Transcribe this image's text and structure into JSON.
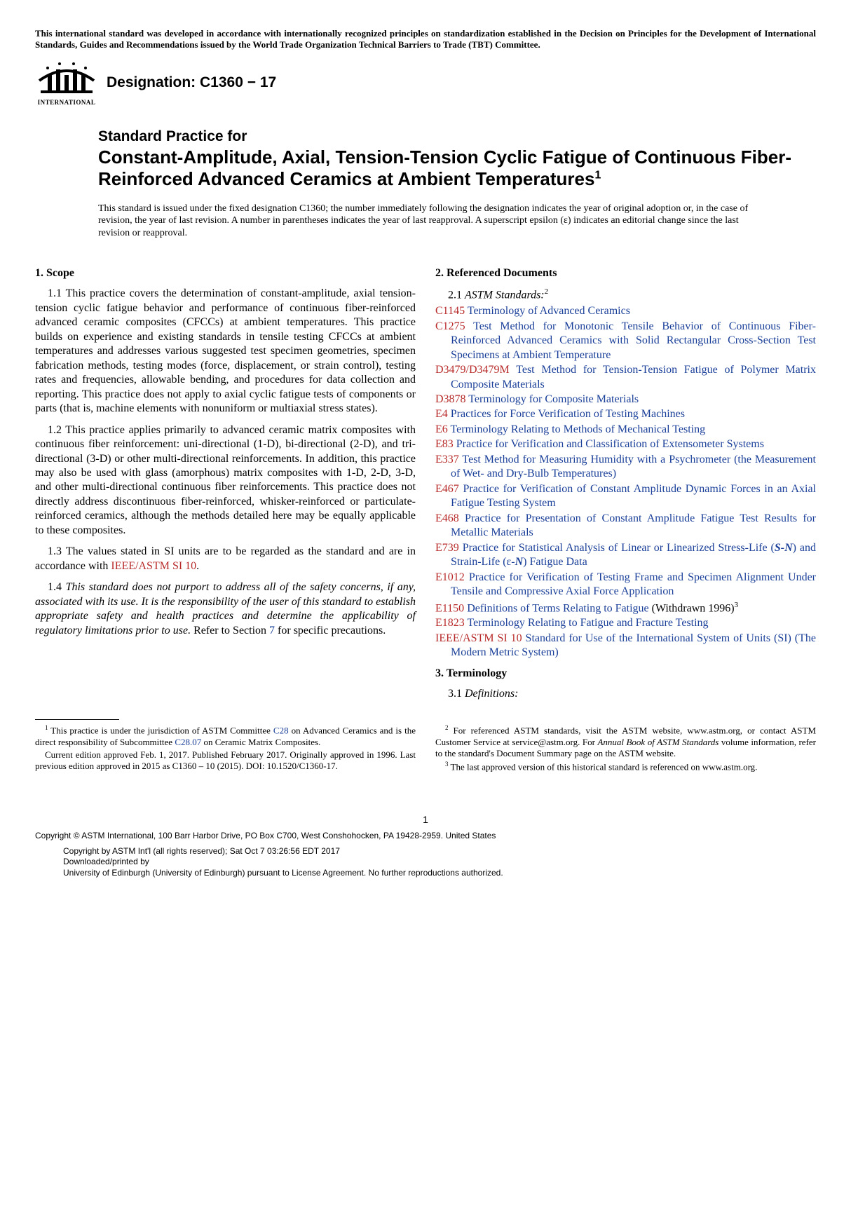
{
  "top_notice": "This international standard was developed in accordance with internationally recognized principles on standardization established in the Decision on Principles for the Development of International Standards, Guides and Recommendations issued by the World Trade Organization Technical Barriers to Trade (TBT) Committee.",
  "logo_international": "INTERNATIONAL",
  "designation": "Designation: C1360 − 17",
  "title_pre": "Standard Practice for",
  "title_main": "Constant-Amplitude, Axial, Tension-Tension Cyclic Fatigue of Continuous Fiber-Reinforced Advanced Ceramics at Ambient Temperatures",
  "title_sup": "1",
  "issuance_note": "This standard is issued under the fixed designation C1360; the number immediately following the designation indicates the year of original adoption or, in the case of revision, the year of last revision. A number in parentheses indicates the year of last reapproval. A superscript epsilon (ε) indicates an editorial change since the last revision or reapproval.",
  "scope": {
    "heading": "1.  Scope",
    "p1": "1.1 This practice covers the determination of constant-amplitude, axial tension-tension cyclic fatigue behavior and performance of continuous fiber-reinforced advanced ceramic composites (CFCCs) at ambient temperatures. This practice builds on experience and existing standards in tensile testing CFCCs at ambient temperatures and addresses various suggested test specimen geometries, specimen fabrication methods, testing modes (force, displacement, or strain control), testing rates and frequencies, allowable bending, and procedures for data collection and reporting. This practice does not apply to axial cyclic fatigue tests of components or parts (that is, machine elements with nonuniform or multiaxial stress states).",
    "p2": "1.2 This practice applies primarily to advanced ceramic matrix composites with continuous fiber reinforcement: uni-directional (1-D), bi-directional (2-D), and tri-directional (3-D) or other multi-directional reinforcements. In addition, this practice may also be used with glass (amorphous) matrix composites with 1-D, 2-D, 3-D, and other multi-directional continuous fiber reinforcements. This practice does not directly address discontinuous fiber-reinforced, whisker-reinforced or particulate-reinforced ceramics, although the methods detailed here may be equally applicable to these composites.",
    "p3_a": "1.3 The values stated in SI units are to be regarded as the standard and are in accordance with ",
    "p3_link": "IEEE/ASTM SI 10",
    "p3_b": ".",
    "p4_a": "1.4 ",
    "p4_i": "This standard does not purport to address all of the safety concerns, if any, associated with its use. It is the responsibility of the user of this standard to establish appropriate safety and health practices and determine the applicability of regulatory limitations prior to use.",
    "p4_b": " Refer to Section ",
    "p4_link": "7",
    "p4_c": " for specific precautions."
  },
  "refs": {
    "heading": "2.  Referenced Documents",
    "sub_a": "2.1 ",
    "sub_i": "ASTM Standards:",
    "sub_sup": "2",
    "items": [
      {
        "code": "C1145",
        "title": " Terminology of Advanced Ceramics"
      },
      {
        "code": "C1275",
        "title": " Test Method for Monotonic Tensile Behavior of Continuous Fiber-Reinforced Advanced Ceramics with Solid Rectangular Cross-Section Test Specimens at Ambient Temperature"
      },
      {
        "code": "D3479/D3479M",
        "title": " Test Method for Tension-Tension Fatigue of Polymer Matrix Composite Materials"
      },
      {
        "code": "D3878",
        "title": " Terminology for Composite Materials"
      },
      {
        "code": "E4",
        "title": " Practices for Force Verification of Testing Machines"
      },
      {
        "code": "E6",
        "title": " Terminology Relating to Methods of Mechanical Testing"
      },
      {
        "code": "E83",
        "title": " Practice for Verification and Classification of Extensometer Systems"
      },
      {
        "code": "E337",
        "title": " Test Method for Measuring Humidity with a Psychrometer (the Measurement of Wet- and Dry-Bulb Temperatures)"
      },
      {
        "code": "E467",
        "title": " Practice for Verification of Constant Amplitude Dynamic Forces in an Axial Fatigue Testing System"
      },
      {
        "code": "E468",
        "title": " Practice for Presentation of Constant Amplitude Fatigue Test Results for Metallic Materials"
      },
      {
        "code": "E739",
        "title_a": " Practice for Statistical Analysis of Linear or Linearized Stress-Life (",
        "title_bi": "S-N",
        "title_b": ") and Strain-Life (ε-",
        "title_ci": "N",
        "title_c": ") Fatigue Data"
      },
      {
        "code": "E1012",
        "title": " Practice for Verification of Testing Frame and Specimen Alignment Under Tensile and Compressive Axial Force Application"
      },
      {
        "code": "E1150",
        "title": " Definitions of Terms Relating to Fatigue",
        "suffix": " (Withdrawn 1996)",
        "sup": "3"
      },
      {
        "code": "E1823",
        "title": " Terminology Relating to Fatigue and Fracture Testing"
      },
      {
        "code": "IEEE/ASTM SI 10",
        "title": " Standard for Use of the International System of Units (SI) (The Modern Metric System)"
      }
    ]
  },
  "terminology": {
    "heading": "3.  Terminology",
    "sub_a": "3.1 ",
    "sub_i": "Definitions:"
  },
  "footnotes": {
    "left": {
      "p1_sup": "1",
      "p1_a": " This practice is under the jurisdiction of ASTM Committee ",
      "p1_l1": "C28",
      "p1_b": " on Advanced Ceramics and is the direct responsibility of Subcommittee ",
      "p1_l2": "C28.07",
      "p1_c": " on Ceramic Matrix Composites.",
      "p2": "Current edition approved Feb. 1, 2017. Published February 2017. Originally approved in 1996. Last previous edition approved in 2015 as C1360 – 10 (2015). DOI: 10.1520/C1360-17."
    },
    "right": {
      "p1_sup": "2",
      "p1_a": " For referenced ASTM standards, visit the ASTM website, www.astm.org, or contact ASTM Customer Service at service@astm.org. For ",
      "p1_i": "Annual Book of ASTM Standards",
      "p1_b": " volume information, refer to the standard's Document Summary page on the ASTM website.",
      "p2_sup": "3",
      "p2": " The last approved version of this historical standard is referenced on www.astm.org."
    }
  },
  "copyright": {
    "line1": "Copyright © ASTM International, 100 Barr Harbor Drive, PO Box C700, West Conshohocken, PA 19428-2959. United States",
    "line2": "Copyright by ASTM Int'l (all rights reserved); Sat Oct  7 03:26:56 EDT 2017",
    "line3": "Downloaded/printed by",
    "line4": "University of Edinburgh (University of Edinburgh) pursuant to License Agreement. No further reproductions authorized."
  },
  "page_num": "1"
}
